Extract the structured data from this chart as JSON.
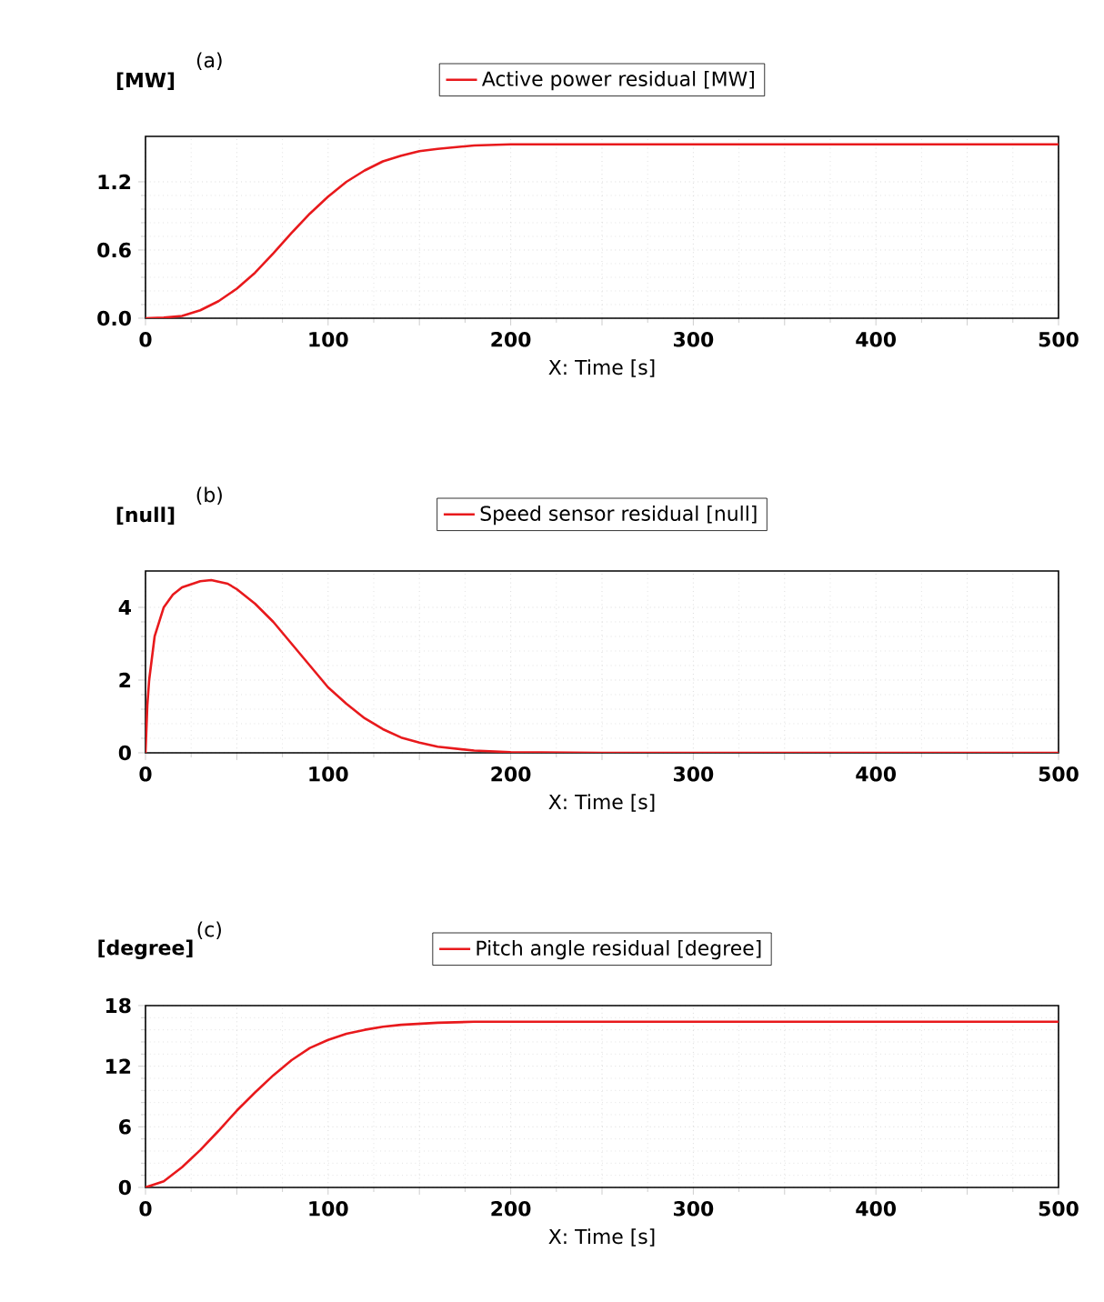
{
  "chart_data": [
    {
      "type": "line",
      "title": "(a)",
      "ylabel": "[MW]",
      "xlabel": "X: Time [s]",
      "legend": "top",
      "grid": true,
      "xlim": [
        0,
        500
      ],
      "ylim": [
        0,
        1.6
      ],
      "xticks": [
        0,
        {
          "value": 50,
          "label": null
        },
        100,
        {
          "value": 150,
          "label": null
        },
        200,
        {
          "value": 250,
          "label": null
        },
        300,
        {
          "value": 350,
          "label": null
        },
        400,
        {
          "value": 450,
          "label": null
        },
        500
      ],
      "yticks": [
        {
          "value": 0,
          "label": "0.0"
        },
        {
          "value": 0.6,
          "label": "0.6"
        },
        {
          "value": 1.2,
          "label": "1.2"
        }
      ],
      "series": [
        {
          "name": "Active power residual [MW]",
          "color": "#e8191c",
          "x": [
            0,
            10,
            20,
            30,
            40,
            50,
            60,
            70,
            80,
            90,
            100,
            110,
            120,
            130,
            140,
            150,
            160,
            180,
            200,
            250,
            300,
            400,
            500
          ],
          "values": [
            0,
            0.005,
            0.02,
            0.07,
            0.15,
            0.26,
            0.4,
            0.57,
            0.75,
            0.92,
            1.07,
            1.2,
            1.3,
            1.38,
            1.43,
            1.47,
            1.49,
            1.52,
            1.53,
            1.53,
            1.53,
            1.53,
            1.53
          ]
        }
      ]
    },
    {
      "type": "line",
      "title": "(b)",
      "ylabel": "[null]",
      "xlabel": "X: Time [s]",
      "legend": "top",
      "grid": true,
      "xlim": [
        0,
        500
      ],
      "ylim": [
        0,
        5
      ],
      "xticks": [
        0,
        {
          "value": 50,
          "label": null
        },
        100,
        {
          "value": 150,
          "label": null
        },
        200,
        {
          "value": 250,
          "label": null
        },
        300,
        {
          "value": 350,
          "label": null
        },
        400,
        {
          "value": 450,
          "label": null
        },
        500
      ],
      "yticks": [
        0,
        2,
        4
      ],
      "series": [
        {
          "name": "Speed sensor residual [null]",
          "color": "#e8191c",
          "x": [
            0,
            1,
            2,
            5,
            10,
            15,
            20,
            30,
            36,
            45,
            50,
            60,
            70,
            80,
            90,
            100,
            110,
            120,
            130,
            140,
            150,
            160,
            180,
            200,
            250,
            300,
            400,
            500
          ],
          "values": [
            0,
            1.3,
            2.0,
            3.2,
            4.0,
            4.35,
            4.55,
            4.72,
            4.75,
            4.65,
            4.5,
            4.1,
            3.6,
            3.0,
            2.4,
            1.8,
            1.35,
            0.95,
            0.65,
            0.42,
            0.28,
            0.17,
            0.06,
            0.02,
            0,
            0,
            0,
            0
          ]
        }
      ]
    },
    {
      "type": "line",
      "title": "(c)",
      "ylabel": "[degree]",
      "xlabel": "X: Time [s]",
      "legend": "top",
      "grid": true,
      "xlim": [
        0,
        500
      ],
      "ylim": [
        0,
        18
      ],
      "xticks": [
        0,
        {
          "value": 50,
          "label": null
        },
        100,
        {
          "value": 150,
          "label": null
        },
        200,
        {
          "value": 250,
          "label": null
        },
        300,
        {
          "value": 350,
          "label": null
        },
        400,
        {
          "value": 450,
          "label": null
        },
        500
      ],
      "yticks": [
        0,
        6,
        12,
        18
      ],
      "series": [
        {
          "name": "Pitch angle residual [degree]",
          "color": "#e8191c",
          "x": [
            0,
            10,
            20,
            30,
            40,
            50,
            60,
            70,
            80,
            90,
            100,
            110,
            120,
            130,
            140,
            160,
            180,
            200,
            300,
            400,
            500
          ],
          "values": [
            0,
            0.6,
            2.0,
            3.7,
            5.6,
            7.6,
            9.4,
            11.1,
            12.6,
            13.8,
            14.6,
            15.2,
            15.6,
            15.9,
            16.1,
            16.3,
            16.4,
            16.4,
            16.4,
            16.4,
            16.4
          ]
        }
      ]
    }
  ]
}
